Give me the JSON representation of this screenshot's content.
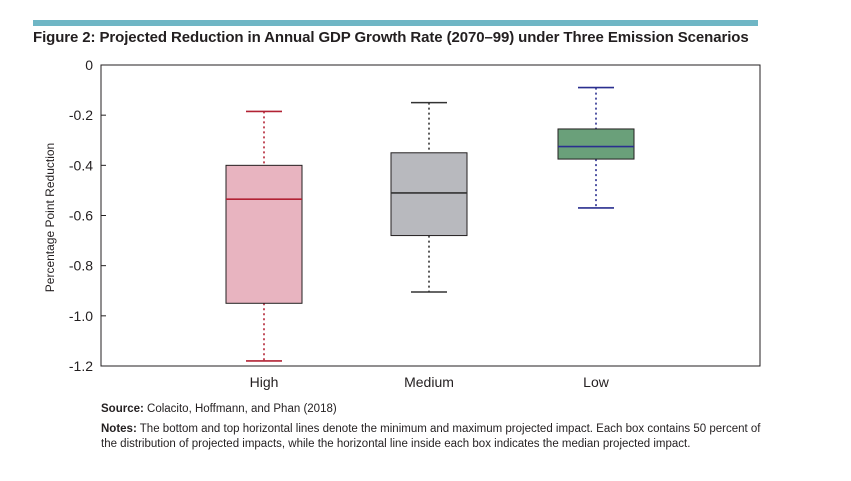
{
  "figure": {
    "title": "Figure 2: Projected Reduction in Annual GDP Growth Rate (2070–99) under Three Emission Scenarios",
    "accent_color": "#6fb6c5"
  },
  "chart_data": {
    "type": "box",
    "ylabel": "Percentage Point Reduction",
    "ylim": [
      -1.2,
      0
    ],
    "yticks": [
      "0",
      "-0.2",
      "-0.4",
      "-0.6",
      "-0.8",
      "-1.0",
      "-1.2"
    ],
    "ytick_values": [
      0,
      -0.2,
      -0.4,
      -0.6,
      -0.8,
      -1.0,
      -1.2
    ],
    "grid": false,
    "categories": [
      "High",
      "Medium",
      "Low"
    ],
    "boxes": [
      {
        "category": "High",
        "min": -1.18,
        "q1": -0.95,
        "median": -0.535,
        "q3": -0.4,
        "max": -0.185,
        "fill": "#e8b4c0",
        "median_color": "#b22234",
        "whisker_color": "#b22234"
      },
      {
        "category": "Medium",
        "min": -0.905,
        "q1": -0.68,
        "median": -0.51,
        "q3": -0.35,
        "max": -0.15,
        "fill": "#b8b9be",
        "median_color": "#333333",
        "whisker_color": "#333333"
      },
      {
        "category": "Low",
        "min": -0.57,
        "q1": -0.375,
        "median": -0.325,
        "q3": -0.255,
        "max": -0.09,
        "fill": "#6aa07a",
        "median_color": "#2a2f8f",
        "whisker_color": "#2a2f8f"
      }
    ]
  },
  "notes": {
    "source_label": "Source:",
    "source_text": "Colacito, Hoffmann, and Phan (2018)",
    "notes_label": "Notes:",
    "notes_text": "The bottom and top horizontal lines denote the minimum and maximum projected impact. Each box contains 50 percent of the distribution of projected impacts, while the horizontal line inside each box indicates the median projected impact."
  }
}
